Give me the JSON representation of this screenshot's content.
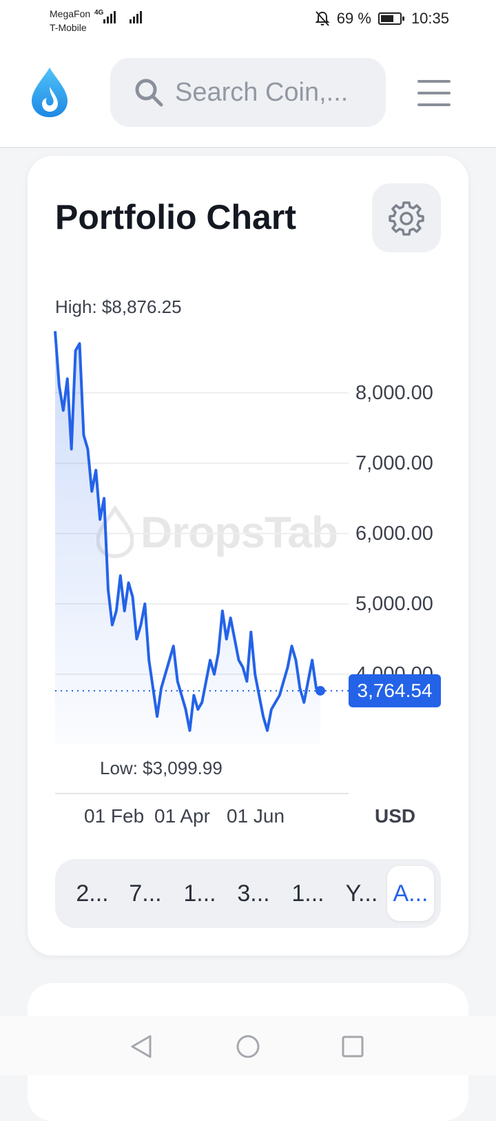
{
  "status_bar": {
    "carrier_1": "MegaFon",
    "carrier_2": "T-Mobile",
    "network_type": "4G",
    "battery_percent": "69 %",
    "battery_level": 0.69,
    "time": "10:35",
    "icons": [
      "signal-icon",
      "signal-icon",
      "muted-bell-icon",
      "battery-icon"
    ]
  },
  "header": {
    "logo_icon": "drop-logo-icon",
    "search_placeholder": "Search Coin,...",
    "menu_icon": "hamburger-menu-icon"
  },
  "portfolio": {
    "title": "Portfolio Chart",
    "settings_icon": "gear-icon",
    "high_label": "High: $8,876.25",
    "low_label": "Low: $3,099.99",
    "current_value": "3,764.54",
    "currency": "USD",
    "watermark": "DropsTab",
    "range_tabs": [
      {
        "label": "2...",
        "active": false
      },
      {
        "label": "7...",
        "active": false
      },
      {
        "label": "1...",
        "active": false
      },
      {
        "label": "3...",
        "active": false
      },
      {
        "label": "1...",
        "active": false
      },
      {
        "label": "Y...",
        "active": false
      },
      {
        "label": "A...",
        "active": true
      }
    ]
  },
  "chart_data": {
    "type": "area",
    "title": "Portfolio Chart",
    "xlabel": "",
    "ylabel": "",
    "x_tick_labels": [
      "01 Feb",
      "01 Apr",
      "01 Jun"
    ],
    "y_tick_labels": [
      "8,000.00",
      "7,000.00",
      "6,000.00",
      "5,000.00",
      "4,000.00"
    ],
    "y_ticks": [
      8000,
      7000,
      6000,
      5000,
      4000
    ],
    "ylim": [
      3000,
      8880
    ],
    "grid": true,
    "series": [
      {
        "values": [
          8876,
          8100,
          7750,
          8200,
          7200,
          8600,
          8700,
          7400,
          7200,
          6600,
          6900,
          6200,
          6500,
          5200,
          4700,
          4900,
          5400,
          4900,
          5300,
          5100,
          4500,
          4700,
          5000,
          4200,
          3800,
          3400,
          3800,
          4000,
          4200,
          4400,
          3900,
          3700,
          3500,
          3200,
          3700,
          3500,
          3600,
          3900,
          4200,
          4000,
          4300,
          4900,
          4500,
          4800,
          4500,
          4200,
          4100,
          3900,
          4600,
          4000,
          3700,
          3400,
          3200,
          3500,
          3600,
          3700,
          3900,
          4100,
          4400,
          4200,
          3800,
          3600,
          3900,
          4200,
          3800,
          3765
        ]
      }
    ],
    "high": 8876.25,
    "low": 3099.99,
    "current": 3764.54,
    "currency": "USD"
  },
  "nav_bar": {
    "icons": [
      "back-icon",
      "home-icon",
      "recents-icon"
    ]
  }
}
